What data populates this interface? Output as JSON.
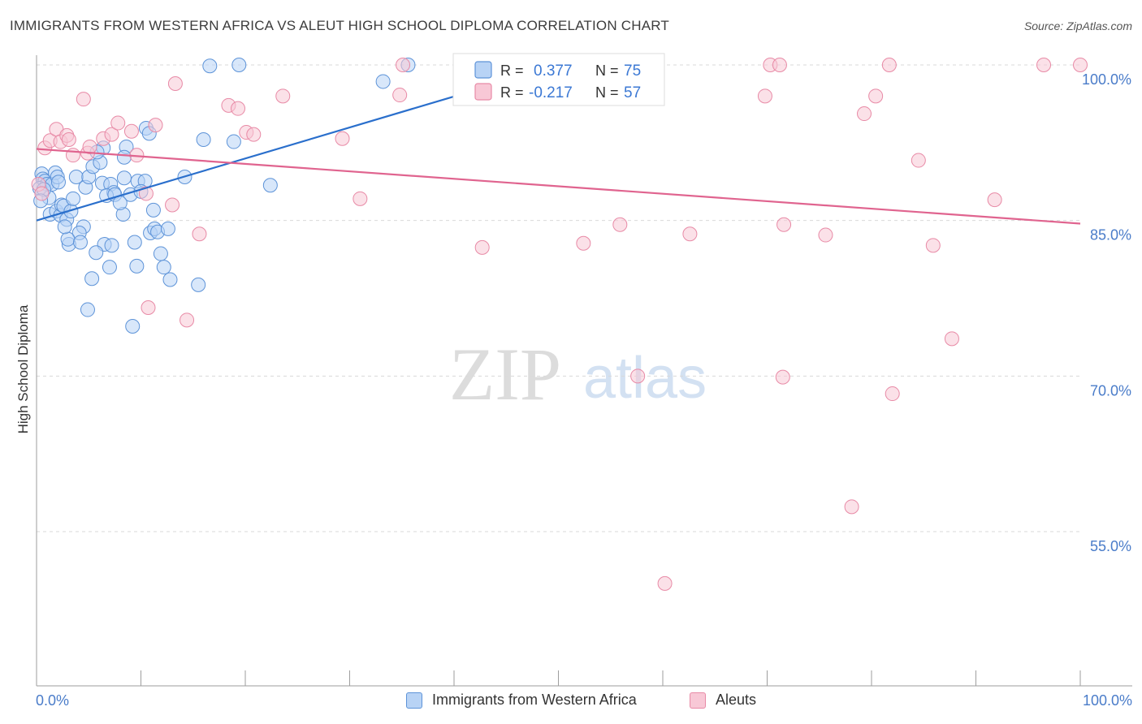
{
  "title": "IMMIGRANTS FROM WESTERN AFRICA VS ALEUT HIGH SCHOOL DIPLOMA CORRELATION CHART",
  "source": "Source: ZipAtlas.com",
  "watermark": {
    "zip": "ZIP",
    "atlas": "atlas"
  },
  "colors": {
    "blue_fill": "#b8d3f5",
    "blue_stroke": "#5d93d8",
    "blue_line": "#2a6fcc",
    "pink_fill": "#f8c8d6",
    "pink_stroke": "#e88aa6",
    "pink_line": "#e0648f",
    "grid": "#d9d9d9",
    "tick_label": "#4a7cc9",
    "axis": "#9e9e9e"
  },
  "legend": {
    "r_label": "R =",
    "n_label": "N =",
    "rows": [
      {
        "r": "0.377",
        "n": "75"
      },
      {
        "r": "-0.217",
        "n": "57"
      }
    ]
  },
  "chart_data": {
    "type": "scatter",
    "xlabel": "",
    "ylabel": "High School Diploma",
    "xlim": [
      0,
      100
    ],
    "ylim": [
      41.5,
      102.5
    ],
    "x_tick_labels": {
      "left": "0.0%",
      "right": "100.0%"
    },
    "y_ticks": [
      {
        "value": 100,
        "label": "100.0%"
      },
      {
        "value": 85,
        "label": "85.0%"
      },
      {
        "value": 70,
        "label": "70.0%"
      },
      {
        "value": 55,
        "label": "55.0%"
      }
    ],
    "grid": true,
    "legend_position": "top-center",
    "series": [
      {
        "name": "Immigrants from Western Africa",
        "color": "blue",
        "r": 0.377,
        "n": 75,
        "trend": {
          "x": [
            0,
            40.8
          ],
          "y": [
            85.0,
            97.2
          ]
        },
        "points": [
          [
            0.5,
            89.5
          ],
          [
            0.6,
            89.0
          ],
          [
            0.8,
            88.8
          ],
          [
            1.0,
            88.5
          ],
          [
            1.2,
            87.2
          ],
          [
            1.5,
            88.5
          ],
          [
            1.8,
            89.6
          ],
          [
            2.0,
            89.2
          ],
          [
            2.1,
            88.7
          ],
          [
            1.3,
            85.6
          ],
          [
            1.9,
            85.9
          ],
          [
            2.3,
            85.5
          ],
          [
            2.4,
            86.5
          ],
          [
            2.6,
            86.4
          ],
          [
            2.9,
            85.1
          ],
          [
            3.3,
            85.9
          ],
          [
            3.5,
            87.1
          ],
          [
            3.8,
            89.2
          ],
          [
            4.5,
            84.4
          ],
          [
            4.1,
            83.8
          ],
          [
            3.1,
            82.7
          ],
          [
            3.0,
            83.2
          ],
          [
            4.2,
            82.9
          ],
          [
            4.7,
            88.2
          ],
          [
            5.0,
            89.2
          ],
          [
            5.4,
            90.2
          ],
          [
            6.1,
            90.6
          ],
          [
            6.3,
            88.6
          ],
          [
            7.1,
            88.5
          ],
          [
            7.4,
            87.7
          ],
          [
            6.7,
            87.4
          ],
          [
            7.5,
            87.5
          ],
          [
            8.3,
            85.6
          ],
          [
            9.7,
            88.8
          ],
          [
            8.4,
            89.1
          ],
          [
            10.4,
            88.8
          ],
          [
            9.0,
            87.5
          ],
          [
            10.0,
            87.8
          ],
          [
            6.5,
            82.7
          ],
          [
            5.7,
            81.9
          ],
          [
            7.2,
            82.6
          ],
          [
            9.4,
            82.9
          ],
          [
            10.9,
            83.8
          ],
          [
            11.3,
            84.2
          ],
          [
            11.6,
            83.9
          ],
          [
            12.6,
            84.2
          ],
          [
            11.9,
            81.8
          ],
          [
            12.2,
            80.5
          ],
          [
            9.6,
            80.6
          ],
          [
            7.0,
            80.5
          ],
          [
            5.3,
            79.4
          ],
          [
            12.8,
            79.3
          ],
          [
            15.5,
            78.8
          ],
          [
            4.9,
            76.4
          ],
          [
            9.2,
            74.8
          ],
          [
            6.4,
            92.0
          ],
          [
            8.6,
            92.1
          ],
          [
            8.4,
            91.1
          ],
          [
            5.8,
            91.6
          ],
          [
            10.5,
            93.9
          ],
          [
            10.8,
            93.4
          ],
          [
            16.0,
            92.8
          ],
          [
            18.9,
            92.6
          ],
          [
            11.2,
            86.0
          ],
          [
            8.0,
            86.7
          ],
          [
            14.2,
            89.2
          ],
          [
            22.4,
            88.4
          ],
          [
            16.6,
            99.9
          ],
          [
            19.4,
            100.0
          ],
          [
            33.2,
            98.4
          ],
          [
            35.6,
            100.0
          ],
          [
            0.3,
            88.1
          ],
          [
            0.7,
            88.0
          ],
          [
            0.4,
            86.9
          ],
          [
            2.7,
            84.4
          ]
        ]
      },
      {
        "name": "Aleuts",
        "color": "pink",
        "r": -0.217,
        "n": 57,
        "trend": {
          "x": [
            0,
            100
          ],
          "y": [
            91.9,
            84.7
          ]
        },
        "points": [
          [
            0.2,
            88.5
          ],
          [
            0.5,
            87.6
          ],
          [
            0.8,
            92.0
          ],
          [
            1.3,
            92.7
          ],
          [
            1.9,
            93.8
          ],
          [
            2.3,
            92.6
          ],
          [
            2.9,
            93.2
          ],
          [
            3.1,
            92.8
          ],
          [
            3.5,
            91.3
          ],
          [
            4.5,
            96.7
          ],
          [
            4.9,
            91.5
          ],
          [
            5.1,
            92.1
          ],
          [
            6.4,
            92.9
          ],
          [
            7.2,
            93.3
          ],
          [
            7.8,
            94.4
          ],
          [
            9.1,
            93.6
          ],
          [
            9.6,
            91.3
          ],
          [
            11.4,
            94.2
          ],
          [
            10.5,
            87.6
          ],
          [
            13.0,
            86.5
          ],
          [
            13.3,
            98.2
          ],
          [
            15.6,
            83.7
          ],
          [
            14.4,
            75.4
          ],
          [
            10.7,
            76.6
          ],
          [
            18.4,
            96.1
          ],
          [
            19.3,
            95.8
          ],
          [
            20.1,
            93.5
          ],
          [
            20.8,
            93.3
          ],
          [
            23.6,
            97.0
          ],
          [
            29.3,
            92.9
          ],
          [
            31.0,
            87.1
          ],
          [
            34.8,
            97.1
          ],
          [
            35.1,
            100.0
          ],
          [
            42.7,
            82.4
          ],
          [
            47.7,
            99.9
          ],
          [
            52.4,
            82.8
          ],
          [
            55.9,
            84.6
          ],
          [
            57.6,
            70.0
          ],
          [
            60.2,
            50.0
          ],
          [
            62.6,
            83.7
          ],
          [
            69.8,
            97.0
          ],
          [
            70.3,
            100.0
          ],
          [
            71.2,
            100.0
          ],
          [
            71.5,
            69.9
          ],
          [
            71.6,
            84.6
          ],
          [
            75.6,
            83.6
          ],
          [
            78.1,
            57.4
          ],
          [
            79.3,
            95.3
          ],
          [
            80.4,
            97.0
          ],
          [
            81.7,
            100.0
          ],
          [
            82.0,
            68.3
          ],
          [
            84.5,
            90.8
          ],
          [
            85.9,
            82.6
          ],
          [
            87.7,
            73.6
          ],
          [
            91.8,
            87.0
          ],
          [
            96.5,
            100.0
          ],
          [
            100.0,
            100.0
          ]
        ]
      }
    ]
  }
}
